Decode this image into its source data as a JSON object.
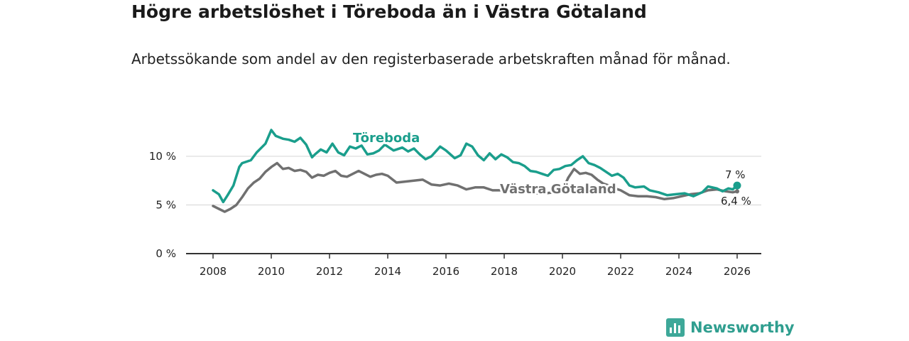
{
  "chart_data": {
    "type": "line",
    "title": "Högre arbetslöshet i Töreboda än i Västra Götaland",
    "subtitle": "Arbetssökande som andel av den registerbaserade arbetskraften månad för månad.",
    "xlabel": "",
    "ylabel": "",
    "xlim": [
      2007.6,
      2026.9
    ],
    "ylim": [
      0,
      10
    ],
    "x_ticks": [
      "2008",
      "2010",
      "2012",
      "2014",
      "2016",
      "2018",
      "2020",
      "2022",
      "2024",
      "2026"
    ],
    "y_ticks": [
      {
        "value": 0,
        "label": "0 %"
      },
      {
        "value": 5,
        "label": "5 %"
      },
      {
        "value": 10,
        "label": "10 %"
      }
    ],
    "series": [
      {
        "name": "Töreboda",
        "color": "#1a9e8c",
        "x": [
          2008.0,
          2008.2,
          2008.35,
          2008.5,
          2008.7,
          2008.9,
          2009.0,
          2009.3,
          2009.5,
          2009.8,
          2010.0,
          2010.15,
          2010.4,
          2010.6,
          2010.8,
          2011.0,
          2011.2,
          2011.4,
          2011.5,
          2011.7,
          2011.9,
          2012.1,
          2012.3,
          2012.5,
          2012.7,
          2012.9,
          2013.1,
          2013.3,
          2013.5,
          2013.7,
          2013.9,
          2014.2,
          2014.5,
          2014.7,
          2014.9,
          2015.1,
          2015.3,
          2015.5,
          2015.8,
          2016.0,
          2016.3,
          2016.5,
          2016.7,
          2016.9,
          2017.1,
          2017.3,
          2017.5,
          2017.7,
          2017.9,
          2018.1,
          2018.3,
          2018.5,
          2018.7,
          2018.9,
          2019.1,
          2019.3,
          2019.5,
          2019.7,
          2019.9,
          2020.1,
          2020.3,
          2020.5,
          2020.7,
          2020.9,
          2021.1,
          2021.3,
          2021.5,
          2021.7,
          2021.9,
          2022.1,
          2022.3,
          2022.5,
          2022.8,
          2023.0,
          2023.3,
          2023.6,
          2023.9,
          2024.2,
          2024.5,
          2024.8,
          2025.0,
          2025.3,
          2025.5,
          2025.7,
          2025.85,
          2026.0
        ],
        "values": [
          6.5,
          6.1,
          5.3,
          6.0,
          7.0,
          8.9,
          9.3,
          9.6,
          10.4,
          11.3,
          12.7,
          12.1,
          11.8,
          11.7,
          11.5,
          11.9,
          11.2,
          9.9,
          10.2,
          10.7,
          10.4,
          11.3,
          10.4,
          10.1,
          11.0,
          10.8,
          11.1,
          10.2,
          10.3,
          10.6,
          11.2,
          10.6,
          10.9,
          10.5,
          10.8,
          10.2,
          9.7,
          10.0,
          11.0,
          10.6,
          9.8,
          10.1,
          11.3,
          11.0,
          10.1,
          9.6,
          10.3,
          9.7,
          10.2,
          9.9,
          9.4,
          9.3,
          9.0,
          8.5,
          8.4,
          8.2,
          8.0,
          8.6,
          8.7,
          9.0,
          9.1,
          9.6,
          10.0,
          9.3,
          9.1,
          8.8,
          8.4,
          8.0,
          8.2,
          7.8,
          7.0,
          6.8,
          6.9,
          6.5,
          6.3,
          6.0,
          6.1,
          6.2,
          5.9,
          6.3,
          6.9,
          6.7,
          6.4,
          6.7,
          6.6,
          7.0
        ]
      },
      {
        "name": "Västra Götaland",
        "color": "#707070",
        "x": [
          2008.0,
          2008.2,
          2008.4,
          2008.6,
          2008.8,
          2009.0,
          2009.2,
          2009.4,
          2009.6,
          2009.8,
          2010.0,
          2010.2,
          2010.4,
          2010.6,
          2010.8,
          2011.0,
          2011.2,
          2011.4,
          2011.6,
          2011.8,
          2012.0,
          2012.2,
          2012.4,
          2012.6,
          2012.8,
          2013.0,
          2013.2,
          2013.4,
          2013.6,
          2013.8,
          2014.0,
          2014.3,
          2014.6,
          2014.9,
          2015.2,
          2015.5,
          2015.8,
          2016.1,
          2016.4,
          2016.7,
          2017.0,
          2017.3,
          2017.6,
          2017.9,
          2018.2,
          2018.5,
          2018.8,
          2019.1,
          2019.4,
          2019.7,
          2020.0,
          2020.2,
          2020.4,
          2020.6,
          2020.8,
          2021.0,
          2021.2,
          2021.4,
          2021.6,
          2021.8,
          2022.0,
          2022.3,
          2022.6,
          2022.9,
          2023.2,
          2023.5,
          2023.8,
          2024.1,
          2024.4,
          2024.7,
          2025.0,
          2025.3,
          2025.6,
          2025.85,
          2026.0
        ],
        "values": [
          4.9,
          4.6,
          4.3,
          4.6,
          5.0,
          5.8,
          6.7,
          7.3,
          7.7,
          8.4,
          8.9,
          9.3,
          8.7,
          8.8,
          8.5,
          8.6,
          8.4,
          7.8,
          8.1,
          8.0,
          8.3,
          8.5,
          8.0,
          7.9,
          8.2,
          8.5,
          8.2,
          7.9,
          8.1,
          8.2,
          8.0,
          7.3,
          7.4,
          7.5,
          7.6,
          7.1,
          7.0,
          7.2,
          7.0,
          6.6,
          6.8,
          6.8,
          6.5,
          6.5,
          6.6,
          6.4,
          6.3,
          6.2,
          6.2,
          6.3,
          6.5,
          7.8,
          8.7,
          8.2,
          8.3,
          8.1,
          7.6,
          7.2,
          7.0,
          6.7,
          6.5,
          6.0,
          5.9,
          5.9,
          5.8,
          5.6,
          5.7,
          5.9,
          6.1,
          6.2,
          6.5,
          6.6,
          6.4,
          6.3,
          6.4
        ]
      }
    ],
    "series_labels": {
      "toreboda": "Töreboda",
      "vg": "Västra Götaland"
    },
    "end_labels": {
      "toreboda": "7 %",
      "vg": "6,4 %"
    }
  },
  "brand": {
    "name": "Newsworthy",
    "color": "#3ea899"
  }
}
